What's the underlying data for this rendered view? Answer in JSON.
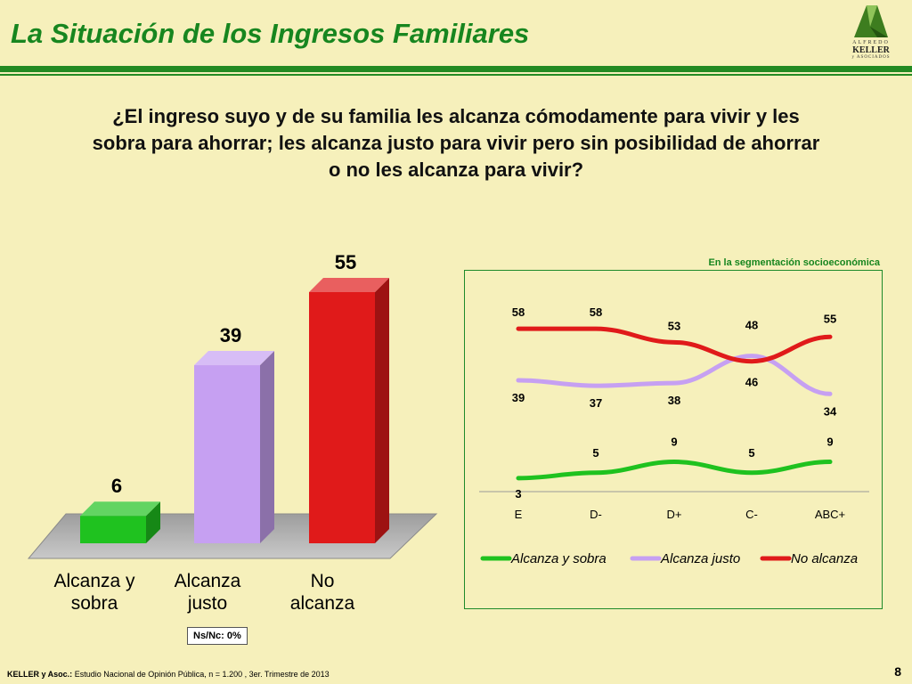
{
  "header": {
    "title": "La Situación de los Ingresos Familiares",
    "logo": {
      "line1": "ALFREDO",
      "line2": "KELLER",
      "line3": "y ASOCIADOS",
      "icon": "keller-logo-icon"
    }
  },
  "question": "¿El ingreso suyo y de su familia les alcanza cómodamente para vivir y les sobra para ahorrar; les alcanza justo para vivir pero sin posibilidad de ahorrar o no les alcanza para vivir?",
  "note": "Ns/Nc: 0%",
  "segment_label": "En la segmentación socioeconómica",
  "footer": {
    "source_bold": "KELLER y Asoc.:",
    "source_text": "Estudio Nacional de Opinión Pública, n = 1.200 , 3er. Trimestre de 2013",
    "page_number": "8"
  },
  "colors": {
    "green": "#1fc21f",
    "lavender": "#c6a0f2",
    "red": "#e01a1a",
    "title_green": "#17861f"
  },
  "chart_data": [
    {
      "type": "bar",
      "categories": [
        "Alcanza y\nsobra",
        "Alcanza\njusto",
        "No\nalcanza"
      ],
      "values": [
        6,
        39,
        55
      ],
      "title": "",
      "xlabel": "",
      "ylabel": "",
      "ylim": [
        0,
        55
      ],
      "grid": false,
      "colors": [
        "#1fc21f",
        "#c6a0f2",
        "#e01a1a"
      ]
    },
    {
      "type": "line",
      "categories": [
        "E",
        "D-",
        "D+",
        "C-",
        "ABC+"
      ],
      "series": [
        {
          "name": "Alcanza y sobra",
          "values": [
            3,
            5,
            9,
            5,
            9
          ],
          "color": "#1fc21f"
        },
        {
          "name": "Alcanza justo",
          "values": [
            39,
            37,
            38,
            48,
            34
          ],
          "color": "#c6a0f2"
        },
        {
          "name": "No alcanza",
          "values": [
            58,
            58,
            53,
            46,
            55
          ],
          "color": "#e01a1a"
        }
      ],
      "title": "",
      "xlabel": "",
      "ylabel": "",
      "ylim": [
        0,
        60
      ],
      "grid": false,
      "legend": "bottom"
    }
  ]
}
